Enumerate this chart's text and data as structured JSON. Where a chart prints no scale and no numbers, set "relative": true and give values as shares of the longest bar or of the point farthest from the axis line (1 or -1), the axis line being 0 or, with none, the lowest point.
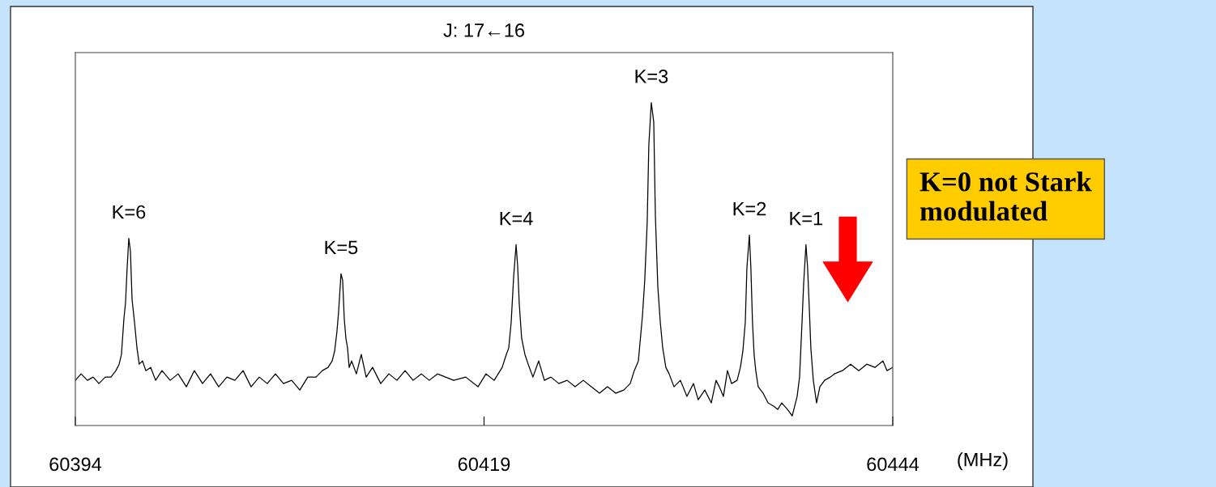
{
  "chart_data": {
    "type": "line",
    "title": "J: 17←16",
    "xlabel": "(MHz)",
    "relative": true,
    "grid": false,
    "legend": false,
    "marker": "none",
    "line_style": "solid",
    "xlim": [
      60394,
      60444
    ],
    "xticks": [
      60394,
      60419,
      60444
    ],
    "annotations": [
      {
        "text": "K=6",
        "x": 60397.27,
        "y": 0.58
      },
      {
        "text": "K=5",
        "x": 60410.25,
        "y": 0.47
      },
      {
        "text": "K=4",
        "x": 60420.96,
        "y": 0.56
      },
      {
        "text": "K=3",
        "x": 60429.23,
        "y": 1.0
      },
      {
        "text": "K=2",
        "x": 60435.23,
        "y": 0.59
      },
      {
        "text": "K=1",
        "x": 60438.69,
        "y": 0.56
      },
      "K=0 not Stark modulated"
    ],
    "series": [
      {
        "color": "#000000",
        "x": [
          60394.0,
          60394.35,
          60394.74,
          60395.09,
          60395.44,
          60395.83,
          60396.18,
          60396.48,
          60396.68,
          60396.82,
          60396.97,
          60397.07,
          60397.17,
          60397.27,
          60397.37,
          60397.47,
          60397.62,
          60397.77,
          60397.91,
          60398.11,
          60398.31,
          60398.61,
          60398.91,
          60399.3,
          60399.8,
          60400.29,
          60400.79,
          60401.28,
          60401.78,
          60402.27,
          60402.77,
          60403.27,
          60403.76,
          60404.26,
          60404.75,
          60405.25,
          60405.74,
          60406.24,
          60406.73,
          60407.23,
          60407.73,
          60408.22,
          60408.72,
          60409.11,
          60409.46,
          60409.71,
          60409.86,
          60410.0,
          60410.1,
          60410.25,
          60410.35,
          60410.45,
          60410.55,
          60410.65,
          60410.75,
          60410.9,
          60411.19,
          60411.49,
          60411.79,
          60412.18,
          60412.68,
          60413.18,
          60413.67,
          60414.17,
          60414.66,
          60415.16,
          60415.65,
          60416.15,
          60417.14,
          60417.88,
          60418.63,
          60419.12,
          60419.62,
          60420.11,
          60420.36,
          60420.51,
          60420.66,
          60420.81,
          60420.96,
          60421.06,
          60421.15,
          60421.3,
          60421.5,
          60421.7,
          60421.99,
          60422.34,
          60422.69,
          60423.09,
          60423.58,
          60424.08,
          60424.57,
          60425.07,
          60425.56,
          60426.06,
          60426.55,
          60427.05,
          60427.55,
          60427.94,
          60428.19,
          60428.44,
          60428.69,
          60428.83,
          60428.98,
          60429.08,
          60429.23,
          60429.38,
          60429.48,
          60429.63,
          60429.78,
          60429.93,
          60430.12,
          60430.32,
          60430.62,
          60431.01,
          60431.41,
          60431.81,
          60432.1,
          60432.5,
          60432.9,
          60433.19,
          60433.39,
          60433.64,
          60433.89,
          60434.14,
          60434.48,
          60434.68,
          60434.83,
          60434.98,
          60435.08,
          60435.23,
          60435.32,
          60435.42,
          60435.52,
          60435.62,
          60435.77,
          60436.07,
          60436.37,
          60436.71,
          60436.96,
          60437.21,
          60437.56,
          60437.85,
          60438.15,
          60438.3,
          60438.45,
          60438.55,
          60438.69,
          60438.79,
          60438.89,
          60438.99,
          60439.14,
          60439.34,
          60439.54,
          60439.83,
          60440.18,
          60440.43,
          60440.92,
          60441.42,
          60441.92,
          60442.41,
          60442.91,
          60443.4,
          60443.65,
          60444.0
        ],
        "values": [
          0.14,
          0.16,
          0.14,
          0.15,
          0.13,
          0.15,
          0.15,
          0.17,
          0.19,
          0.22,
          0.33,
          0.38,
          0.49,
          0.58,
          0.54,
          0.39,
          0.32,
          0.24,
          0.19,
          0.2,
          0.17,
          0.18,
          0.14,
          0.17,
          0.14,
          0.16,
          0.12,
          0.17,
          0.13,
          0.16,
          0.12,
          0.15,
          0.14,
          0.17,
          0.12,
          0.15,
          0.13,
          0.16,
          0.13,
          0.14,
          0.11,
          0.15,
          0.15,
          0.17,
          0.18,
          0.2,
          0.23,
          0.29,
          0.35,
          0.47,
          0.45,
          0.33,
          0.27,
          0.24,
          0.18,
          0.2,
          0.16,
          0.22,
          0.15,
          0.18,
          0.13,
          0.16,
          0.14,
          0.17,
          0.14,
          0.16,
          0.14,
          0.16,
          0.14,
          0.15,
          0.12,
          0.16,
          0.14,
          0.18,
          0.22,
          0.24,
          0.32,
          0.46,
          0.56,
          0.49,
          0.38,
          0.27,
          0.22,
          0.19,
          0.15,
          0.2,
          0.14,
          0.15,
          0.13,
          0.14,
          0.12,
          0.14,
          0.12,
          0.1,
          0.12,
          0.1,
          0.11,
          0.13,
          0.17,
          0.2,
          0.34,
          0.45,
          0.63,
          0.87,
          1.0,
          0.94,
          0.65,
          0.43,
          0.32,
          0.24,
          0.18,
          0.16,
          0.12,
          0.14,
          0.09,
          0.13,
          0.08,
          0.11,
          0.07,
          0.14,
          0.12,
          0.09,
          0.17,
          0.13,
          0.14,
          0.18,
          0.23,
          0.32,
          0.49,
          0.59,
          0.49,
          0.32,
          0.22,
          0.17,
          0.12,
          0.1,
          0.07,
          0.06,
          0.05,
          0.07,
          0.05,
          0.03,
          0.09,
          0.15,
          0.32,
          0.44,
          0.56,
          0.49,
          0.37,
          0.24,
          0.14,
          0.07,
          0.12,
          0.14,
          0.15,
          0.16,
          0.17,
          0.19,
          0.17,
          0.19,
          0.18,
          0.2,
          0.17,
          0.18
        ]
      }
    ]
  }
}
